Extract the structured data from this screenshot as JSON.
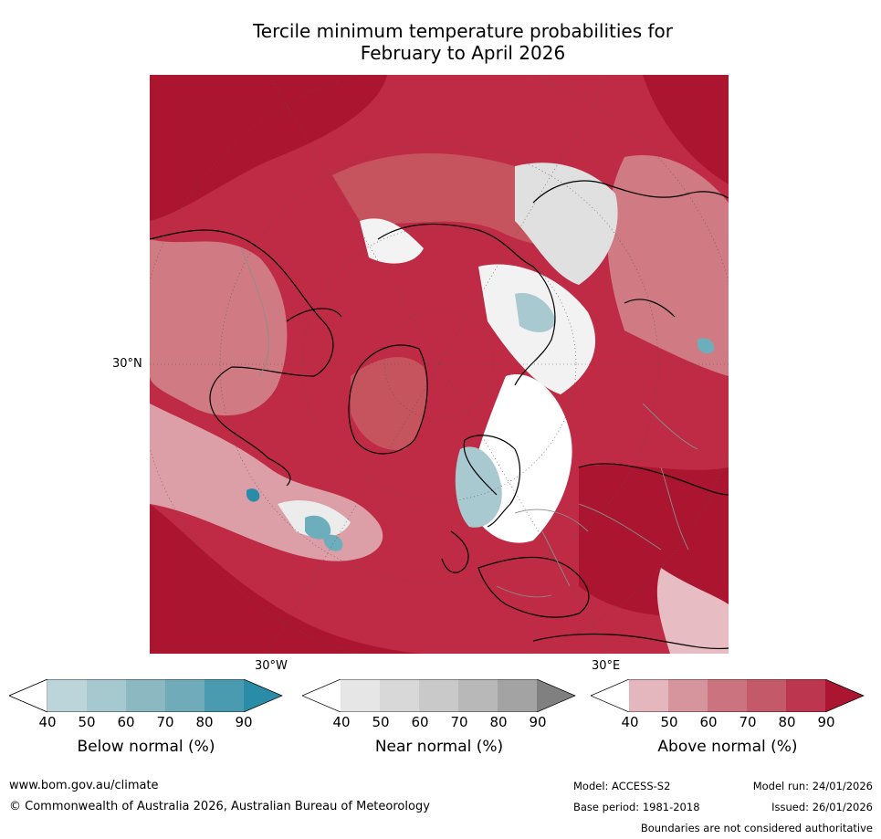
{
  "title_line1": "Tercile minimum temperature probabilities for",
  "title_line2": "February to April 2026",
  "map": {
    "projection": "north-polar-stereographic",
    "lat_label": "30°N",
    "lon_label_west": "30°W",
    "lon_label_east": "30°E",
    "colors": {
      "above_90": "#ab1530",
      "above_80": "#bf2a44",
      "above_70": "#c6545f",
      "above_60": "#d07a83",
      "above_50": "#dc9fa7",
      "above_40": "#e7bcc2",
      "near": "#e0e0e0",
      "below_50": "#a9c9d0",
      "below_70": "#6daebc",
      "below_90": "#2b8ca8",
      "coast": "#000000",
      "border": "#8c8c8c"
    }
  },
  "colorbars": [
    {
      "label": "Below normal (%)",
      "ticks": [
        "40",
        "50",
        "60",
        "70",
        "80",
        "90"
      ],
      "colors": [
        "#ffffff",
        "#bcd5db",
        "#a6c8cf",
        "#8cb8c2",
        "#6fabb9",
        "#4b9bb0",
        "#2b8ca8"
      ]
    },
    {
      "label": "Near normal (%)",
      "ticks": [
        "40",
        "50",
        "60",
        "70",
        "80",
        "90"
      ],
      "colors": [
        "#ffffff",
        "#e6e6e6",
        "#d8d8d8",
        "#c9c9c9",
        "#b8b8b8",
        "#a3a3a3",
        "#808080"
      ]
    },
    {
      "label": "Above normal (%)",
      "ticks": [
        "40",
        "50",
        "60",
        "70",
        "80",
        "90"
      ],
      "colors": [
        "#ffffff",
        "#e3b7bd",
        "#d6959d",
        "#cb7480",
        "#c4596a",
        "#bd3650",
        "#ab1530"
      ]
    }
  ],
  "footer": {
    "website": "www.bom.gov.au/climate",
    "copyright": "© Commonwealth of Australia 2026, Australian Bureau of Meteorology",
    "model": "Model: ACCESS-S2",
    "base_period": "Base period: 1981-2018",
    "model_run": "Model run: 24/01/2026",
    "issued": "Issued: 26/01/2026",
    "disclaimer": "Boundaries are not considered authoritative"
  }
}
